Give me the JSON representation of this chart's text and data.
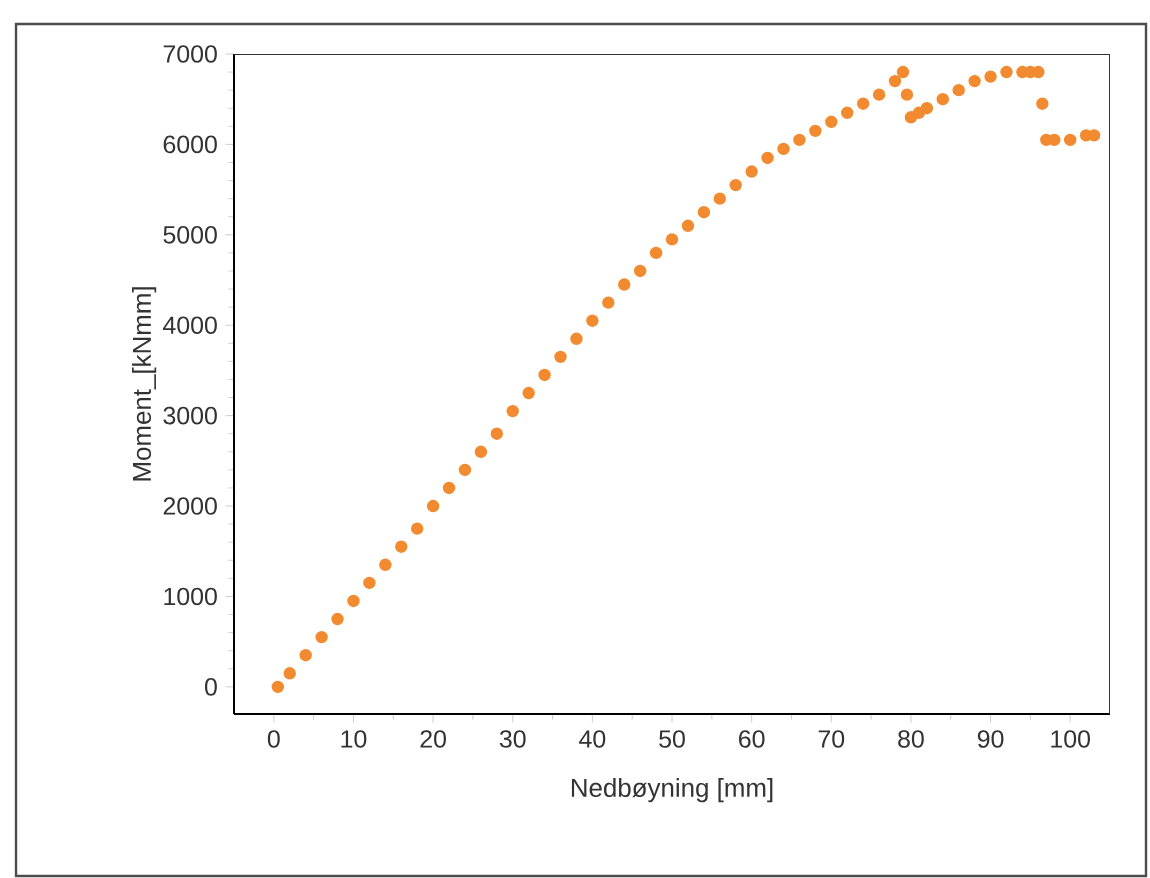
{
  "chart_data": {
    "type": "scatter",
    "xlabel": "Nedbøyning [mm]",
    "ylabel": "Moment_[kNmm]",
    "xlim": [
      -5,
      105
    ],
    "ylim": [
      -300,
      7000
    ],
    "xticks": [
      0,
      10,
      20,
      30,
      40,
      50,
      60,
      70,
      80,
      90,
      100
    ],
    "yticks": [
      0,
      1000,
      2000,
      3000,
      4000,
      5000,
      6000,
      7000
    ],
    "grid": false,
    "legend": false,
    "series": [
      {
        "color": "#f28a30",
        "x": [
          0.5,
          2,
          4,
          6,
          8,
          10,
          12,
          14,
          16,
          18,
          20,
          22,
          24,
          26,
          28,
          30,
          32,
          34,
          36,
          38,
          40,
          42,
          44,
          46,
          48,
          50,
          52,
          54,
          56,
          58,
          60,
          62,
          64,
          66,
          68,
          70,
          72,
          74,
          76,
          78,
          79,
          79.5,
          80,
          81,
          82,
          84,
          86,
          88,
          90,
          92,
          94,
          95,
          96,
          96.5,
          97,
          98,
          100,
          102,
          103
        ],
        "values": [
          0,
          150,
          350,
          550,
          750,
          950,
          1150,
          1350,
          1550,
          1750,
          2000,
          2200,
          2400,
          2600,
          2800,
          3050,
          3250,
          3450,
          3650,
          3850,
          4050,
          4250,
          4450,
          4600,
          4800,
          4950,
          5100,
          5250,
          5400,
          5550,
          5700,
          5850,
          5950,
          6050,
          6150,
          6250,
          6350,
          6450,
          6550,
          6700,
          6800,
          6550,
          6300,
          6350,
          6400,
          6500,
          6600,
          6700,
          6750,
          6800,
          6800,
          6800,
          6800,
          6450,
          6050,
          6050,
          6050,
          6100,
          6100
        ]
      }
    ]
  }
}
